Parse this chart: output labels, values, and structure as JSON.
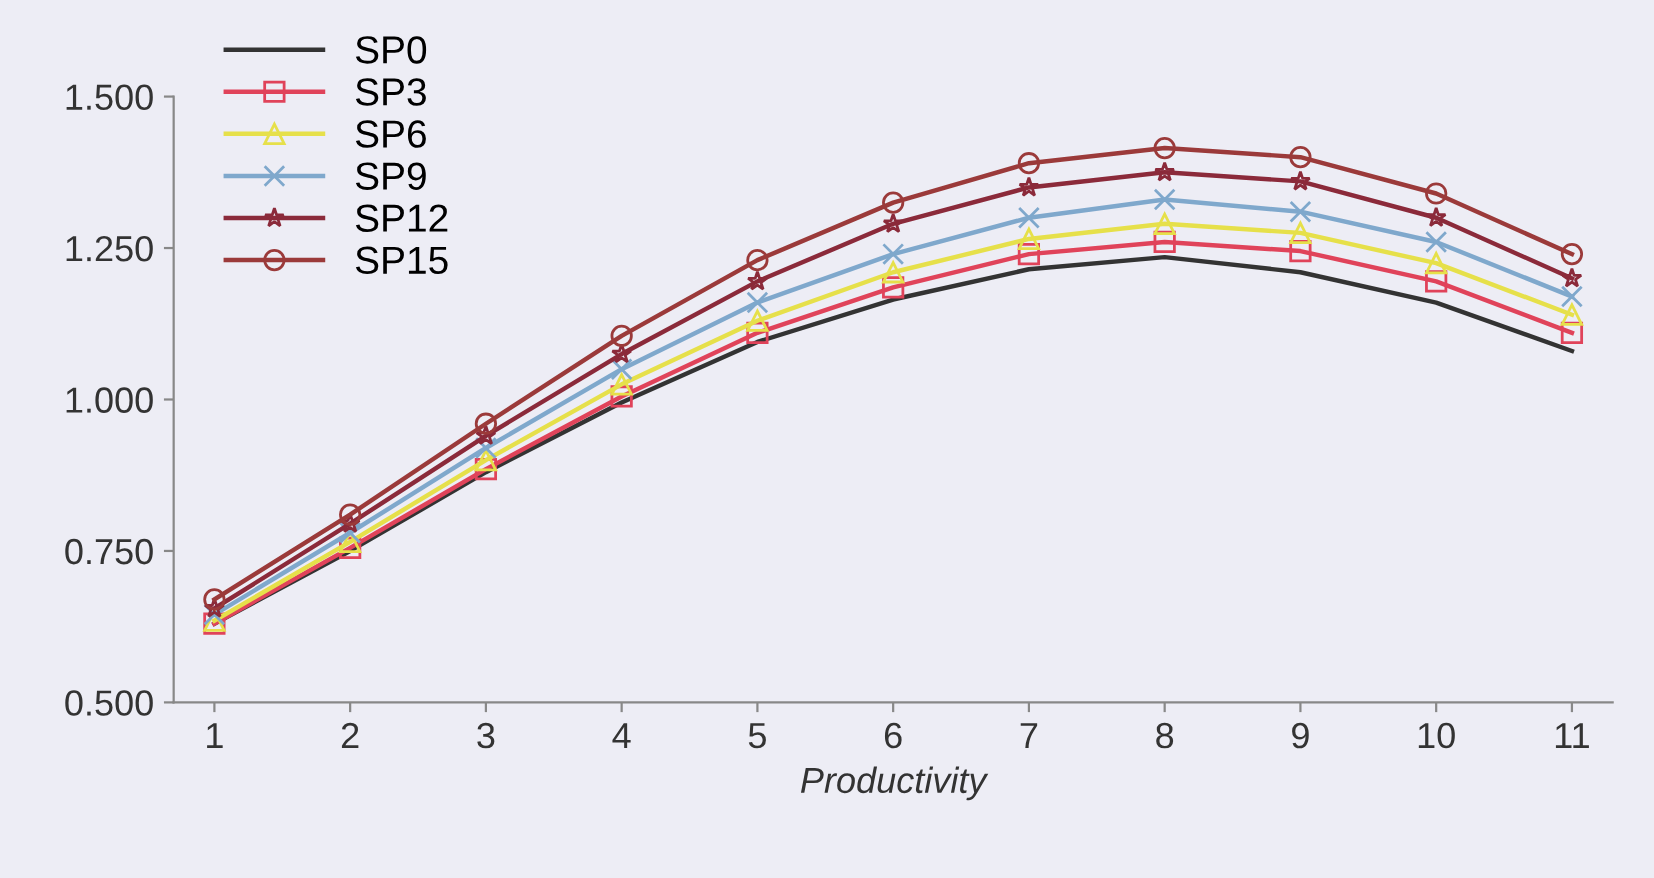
{
  "chart_data": {
    "type": "line",
    "xlabel": "Productivity",
    "categories": [
      "1",
      "2",
      "3",
      "4",
      "5",
      "6",
      "7",
      "8",
      "9",
      "10",
      "11"
    ],
    "ylim": [
      0.5,
      1.5
    ],
    "yticks": [
      {
        "value": 0.5,
        "label": "0.500"
      },
      {
        "value": 0.75,
        "label": "0.750"
      },
      {
        "value": 1.0,
        "label": "1.000"
      },
      {
        "value": 1.25,
        "label": "1.250"
      },
      {
        "value": 1.5,
        "label": "1.500"
      }
    ],
    "grid": false,
    "legend": "top left",
    "line_style": "solid",
    "series": [
      {
        "name": "SP0",
        "color": "#333333",
        "marker": "none",
        "values": [
          0.63,
          0.75,
          0.88,
          0.995,
          1.095,
          1.165,
          1.215,
          1.235,
          1.21,
          1.16,
          1.08
        ]
      },
      {
        "name": "SP3",
        "color": "#e0435a",
        "marker": "square",
        "values": [
          0.63,
          0.755,
          0.885,
          1.005,
          1.11,
          1.185,
          1.24,
          1.26,
          1.245,
          1.195,
          1.11
        ]
      },
      {
        "name": "SP6",
        "color": "#e6e04a",
        "marker": "triangle",
        "values": [
          0.635,
          0.765,
          0.9,
          1.025,
          1.13,
          1.21,
          1.265,
          1.29,
          1.275,
          1.225,
          1.14
        ]
      },
      {
        "name": "SP9",
        "color": "#7fa8cc",
        "marker": "cross",
        "values": [
          0.645,
          0.78,
          0.92,
          1.05,
          1.16,
          1.24,
          1.3,
          1.33,
          1.31,
          1.26,
          1.17
        ]
      },
      {
        "name": "SP12",
        "color": "#8b2a3a",
        "marker": "star",
        "values": [
          0.655,
          0.795,
          0.94,
          1.075,
          1.195,
          1.29,
          1.35,
          1.375,
          1.36,
          1.3,
          1.2
        ]
      },
      {
        "name": "SP15",
        "color": "#9b3a3a",
        "marker": "circle",
        "values": [
          0.67,
          0.81,
          0.96,
          1.105,
          1.23,
          1.325,
          1.39,
          1.415,
          1.4,
          1.34,
          1.24
        ]
      }
    ]
  }
}
